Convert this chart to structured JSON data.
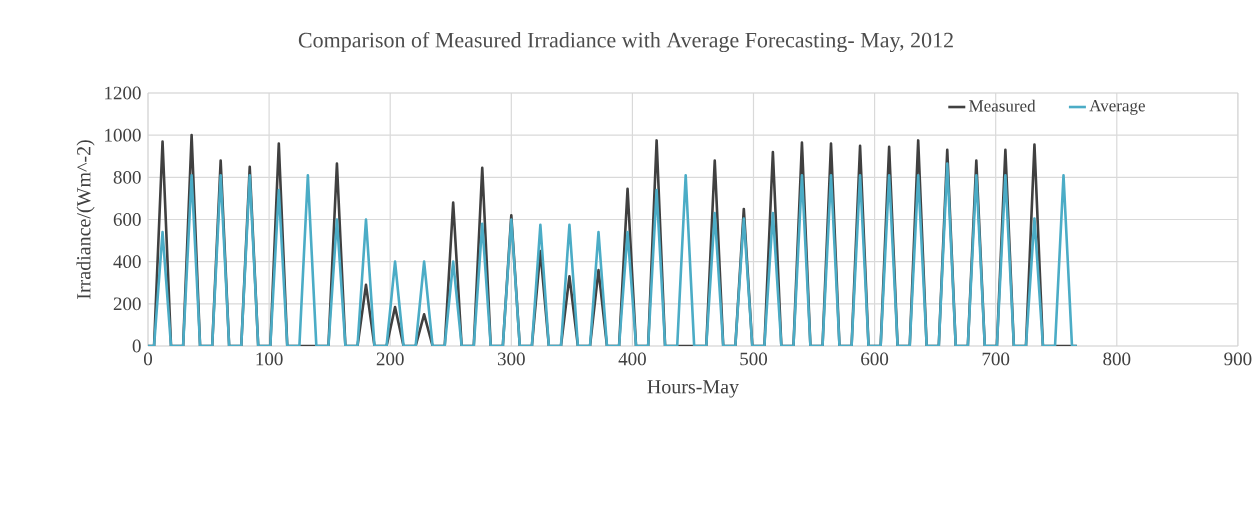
{
  "chart_data": {
    "type": "line",
    "title": "Comparison of Measured Irradiance with Average Forecasting- May, 2012",
    "xlabel": "Hours-May",
    "ylabel": "Irradiance/(Wm^-2)",
    "x": [
      0,
      5,
      12,
      19,
      29,
      36,
      43,
      53,
      60,
      67,
      77,
      84,
      91,
      101,
      108,
      115,
      125,
      132,
      139,
      149,
      156,
      163,
      173,
      180,
      187,
      197,
      204,
      211,
      221,
      228,
      235,
      245,
      252,
      259,
      269,
      276,
      283,
      293,
      300,
      307,
      317,
      324,
      331,
      341,
      348,
      355,
      365,
      372,
      379,
      389,
      396,
      403,
      413,
      420,
      427,
      437,
      444,
      451,
      461,
      468,
      475,
      485,
      492,
      499,
      509,
      516,
      523,
      533,
      540,
      547,
      557,
      564,
      571,
      581,
      588,
      595,
      605,
      612,
      619,
      629,
      636,
      643,
      653,
      660,
      667,
      677,
      684,
      691,
      701,
      708,
      715,
      725,
      732,
      739,
      749,
      756,
      763,
      767
    ],
    "series": [
      {
        "name": "Measured",
        "color": "#404040",
        "values": [
          0,
          0,
          970,
          0,
          0,
          1000,
          0,
          0,
          880,
          0,
          0,
          850,
          0,
          0,
          960,
          0,
          0,
          null,
          0,
          0,
          865,
          0,
          0,
          290,
          0,
          0,
          185,
          0,
          0,
          150,
          0,
          0,
          680,
          0,
          0,
          845,
          0,
          0,
          620,
          0,
          0,
          450,
          0,
          0,
          330,
          0,
          0,
          360,
          0,
          0,
          745,
          0,
          0,
          975,
          0,
          0,
          null,
          0,
          0,
          880,
          0,
          0,
          650,
          0,
          0,
          920,
          0,
          0,
          965,
          0,
          0,
          960,
          0,
          0,
          950,
          0,
          0,
          945,
          0,
          0,
          975,
          0,
          0,
          930,
          0,
          0,
          880,
          0,
          0,
          930,
          0,
          0,
          955,
          0,
          0,
          null,
          0,
          0
        ]
      },
      {
        "name": "Average",
        "color": "#4bacc6",
        "values": [
          0,
          0,
          540,
          0,
          0,
          810,
          0,
          0,
          810,
          0,
          0,
          810,
          0,
          0,
          740,
          0,
          0,
          810,
          0,
          0,
          600,
          0,
          0,
          600,
          0,
          0,
          400,
          0,
          0,
          400,
          0,
          0,
          400,
          0,
          0,
          580,
          0,
          0,
          600,
          0,
          0,
          575,
          0,
          0,
          575,
          0,
          0,
          540,
          0,
          0,
          540,
          0,
          0,
          740,
          0,
          0,
          810,
          0,
          0,
          630,
          0,
          0,
          605,
          0,
          0,
          630,
          0,
          0,
          810,
          0,
          0,
          810,
          0,
          0,
          810,
          0,
          0,
          810,
          0,
          0,
          810,
          0,
          0,
          865,
          0,
          0,
          810,
          0,
          0,
          810,
          0,
          0,
          605,
          0,
          0,
          810,
          0,
          0
        ]
      }
    ],
    "xlim": [
      0,
      900
    ],
    "ylim": [
      0,
      1200
    ],
    "xticks": [
      0,
      100,
      200,
      300,
      400,
      500,
      600,
      700,
      800,
      900
    ],
    "yticks": [
      0,
      200,
      400,
      600,
      800,
      1000,
      1200
    ],
    "grid": true,
    "legend": "top right",
    "marker": "none",
    "line_style": "solid"
  }
}
